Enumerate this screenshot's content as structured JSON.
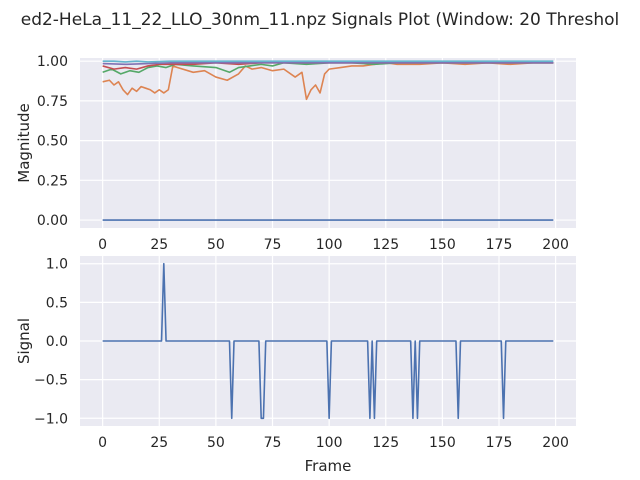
{
  "chart_data": {
    "title": "ed2-HeLa_11_22_LLO_30nm_11.npz Signals Plot (Window: 20 Threshol",
    "charts": [
      {
        "type": "line",
        "xlabel": "",
        "ylabel": "Magnitude",
        "xlim": [
          -10,
          209
        ],
        "ylim": [
          -0.05,
          1.02
        ],
        "xticks": [
          0,
          25,
          50,
          75,
          100,
          125,
          150,
          175,
          200
        ],
        "yticks": [
          0.0,
          0.25,
          0.5,
          0.75,
          1.0
        ],
        "ytick_labels": [
          "0.00",
          "0.25",
          "0.50",
          "0.75",
          "1.00"
        ],
        "grid": true,
        "series": [
          {
            "color": "#4c72b0",
            "x": [
              0,
              199
            ],
            "y": [
              0.0,
              0.0
            ]
          },
          {
            "color": "#dd8452",
            "x": [
              0,
              3,
              5,
              7,
              9,
              11,
              13,
              15,
              17,
              19,
              21,
              23,
              25,
              27,
              29,
              31,
              33,
              40,
              45,
              50,
              55,
              60,
              63,
              66,
              70,
              75,
              80,
              85,
              88,
              90,
              92,
              94,
              96,
              98,
              100,
              105,
              110,
              115,
              120,
              125,
              130,
              140,
              150,
              160,
              170,
              180,
              190,
              199
            ],
            "y": [
              0.87,
              0.88,
              0.85,
              0.87,
              0.82,
              0.79,
              0.83,
              0.81,
              0.84,
              0.83,
              0.82,
              0.8,
              0.82,
              0.8,
              0.82,
              0.97,
              0.96,
              0.93,
              0.94,
              0.9,
              0.88,
              0.92,
              0.97,
              0.95,
              0.96,
              0.94,
              0.95,
              0.9,
              0.93,
              0.76,
              0.82,
              0.85,
              0.8,
              0.92,
              0.95,
              0.96,
              0.97,
              0.97,
              0.98,
              0.99,
              0.98,
              0.98,
              0.99,
              0.98,
              0.99,
              0.98,
              0.99,
              0.99
            ]
          },
          {
            "color": "#55a868",
            "x": [
              0,
              4,
              8,
              12,
              16,
              20,
              24,
              28,
              32,
              40,
              50,
              56,
              60,
              65,
              70,
              75,
              80,
              90,
              100,
              110,
              120,
              130,
              140,
              150,
              160,
              170,
              180,
              190,
              199
            ],
            "y": [
              0.93,
              0.95,
              0.92,
              0.94,
              0.93,
              0.96,
              0.97,
              0.96,
              0.98,
              0.97,
              0.96,
              0.93,
              0.96,
              0.97,
              0.98,
              0.97,
              0.99,
              0.98,
              0.99,
              0.99,
              0.98,
              0.99,
              0.99,
              0.99,
              0.99,
              0.99,
              0.99,
              0.99,
              0.99
            ]
          },
          {
            "color": "#c44e52",
            "x": [
              0,
              5,
              10,
              15,
              20,
              25,
              30,
              40,
              50,
              60,
              70,
              80,
              90,
              100,
              120,
              140,
              160,
              180,
              199
            ],
            "y": [
              0.97,
              0.95,
              0.96,
              0.95,
              0.97,
              0.98,
              0.98,
              0.98,
              0.99,
              0.98,
              0.99,
              0.99,
              0.99,
              0.99,
              0.99,
              0.99,
              0.99,
              0.99,
              0.99
            ]
          },
          {
            "color": "#8172b3",
            "x": [
              0,
              10,
              20,
              30,
              60,
              90,
              120,
              150,
              180,
              199
            ],
            "y": [
              0.985,
              0.98,
              0.985,
              0.99,
              0.99,
              0.99,
              0.99,
              0.99,
              0.99,
              0.99
            ]
          },
          {
            "color": "#64b5cd",
            "x": [
              0,
              5,
              10,
              15,
              20,
              30,
              60,
              100,
              150,
              199
            ],
            "y": [
              1.0,
              1.0,
              0.995,
              1.0,
              0.995,
              1.0,
              1.0,
              1.0,
              1.0,
              1.0
            ]
          }
        ]
      },
      {
        "type": "line",
        "xlabel": "Frame",
        "ylabel": "Signal",
        "xlim": [
          -10,
          209
        ],
        "ylim": [
          -1.1,
          1.1
        ],
        "xticks": [
          0,
          25,
          50,
          75,
          100,
          125,
          150,
          175,
          200
        ],
        "yticks": [
          -1.0,
          -0.5,
          0.0,
          0.5,
          1.0
        ],
        "ytick_labels": [
          "−1.0",
          "−0.5",
          "0.0",
          "0.5",
          "1.0"
        ],
        "grid": true,
        "series": [
          {
            "color": "#4c72b0",
            "x": [
              0,
              26,
              27,
              28,
              56,
              57,
              58,
              69,
              70,
              71,
              72,
              99,
              100,
              101,
              117,
              118,
              119,
              120,
              121,
              136,
              137,
              138,
              139,
              140,
              156,
              157,
              158,
              176,
              177,
              178,
              199
            ],
            "y": [
              0,
              0,
              1,
              0,
              0,
              -1,
              0,
              0,
              -1,
              -1,
              0,
              0,
              -1,
              0,
              0,
              -1,
              0,
              -1,
              0,
              0,
              -1,
              0,
              -1,
              0,
              0,
              -1,
              0,
              0,
              -1,
              0,
              0
            ]
          }
        ]
      }
    ]
  }
}
